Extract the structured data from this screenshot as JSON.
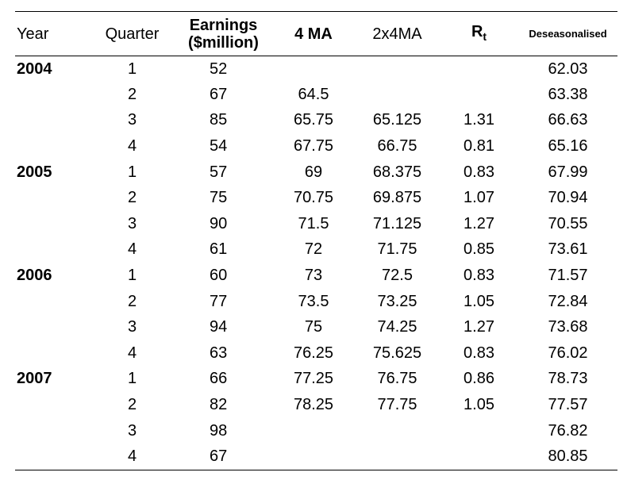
{
  "headers": {
    "year": "Year",
    "quarter": "Quarter",
    "earnings_line1": "Earnings",
    "earnings_line2": "($million)",
    "ma4": "4 MA",
    "ma2x4": "2x4MA",
    "rt_main": "R",
    "rt_sub": "t",
    "deseasonalised": "Deseasonalised"
  },
  "rows": [
    {
      "year": "2004",
      "quarter": "1",
      "earnings": "52",
      "ma4": "",
      "ma2x4": "",
      "rt": "",
      "des": "62.03"
    },
    {
      "year": "",
      "quarter": "2",
      "earnings": "67",
      "ma4": "64.5",
      "ma2x4": "",
      "rt": "",
      "des": "63.38"
    },
    {
      "year": "",
      "quarter": "3",
      "earnings": "85",
      "ma4": "65.75",
      "ma2x4": "65.125",
      "rt": "1.31",
      "des": "66.63"
    },
    {
      "year": "",
      "quarter": "4",
      "earnings": "54",
      "ma4": "67.75",
      "ma2x4": "66.75",
      "rt": "0.81",
      "des": "65.16"
    },
    {
      "year": "2005",
      "quarter": "1",
      "earnings": "57",
      "ma4": "69",
      "ma2x4": "68.375",
      "rt": "0.83",
      "des": "67.99"
    },
    {
      "year": "",
      "quarter": "2",
      "earnings": "75",
      "ma4": "70.75",
      "ma2x4": "69.875",
      "rt": "1.07",
      "des": "70.94"
    },
    {
      "year": "",
      "quarter": "3",
      "earnings": "90",
      "ma4": "71.5",
      "ma2x4": "71.125",
      "rt": "1.27",
      "des": "70.55"
    },
    {
      "year": "",
      "quarter": "4",
      "earnings": "61",
      "ma4": "72",
      "ma2x4": "71.75",
      "rt": "0.85",
      "des": "73.61"
    },
    {
      "year": "2006",
      "quarter": "1",
      "earnings": "60",
      "ma4": "73",
      "ma2x4": "72.5",
      "rt": "0.83",
      "des": "71.57"
    },
    {
      "year": "",
      "quarter": "2",
      "earnings": "77",
      "ma4": "73.5",
      "ma2x4": "73.25",
      "rt": "1.05",
      "des": "72.84"
    },
    {
      "year": "",
      "quarter": "3",
      "earnings": "94",
      "ma4": "75",
      "ma2x4": "74.25",
      "rt": "1.27",
      "des": "73.68"
    },
    {
      "year": "",
      "quarter": "4",
      "earnings": "63",
      "ma4": "76.25",
      "ma2x4": "75.625",
      "rt": "0.83",
      "des": "76.02"
    },
    {
      "year": "2007",
      "quarter": "1",
      "earnings": "66",
      "ma4": "77.25",
      "ma2x4": "76.75",
      "rt": "0.86",
      "des": "78.73"
    },
    {
      "year": "",
      "quarter": "2",
      "earnings": "82",
      "ma4": "78.25",
      "ma2x4": "77.75",
      "rt": "1.05",
      "des": "77.57"
    },
    {
      "year": "",
      "quarter": "3",
      "earnings": "98",
      "ma4": "",
      "ma2x4": "",
      "rt": "",
      "des": "76.82"
    },
    {
      "year": "",
      "quarter": "4",
      "earnings": "67",
      "ma4": "",
      "ma2x4": "",
      "rt": "",
      "des": "80.85"
    }
  ]
}
